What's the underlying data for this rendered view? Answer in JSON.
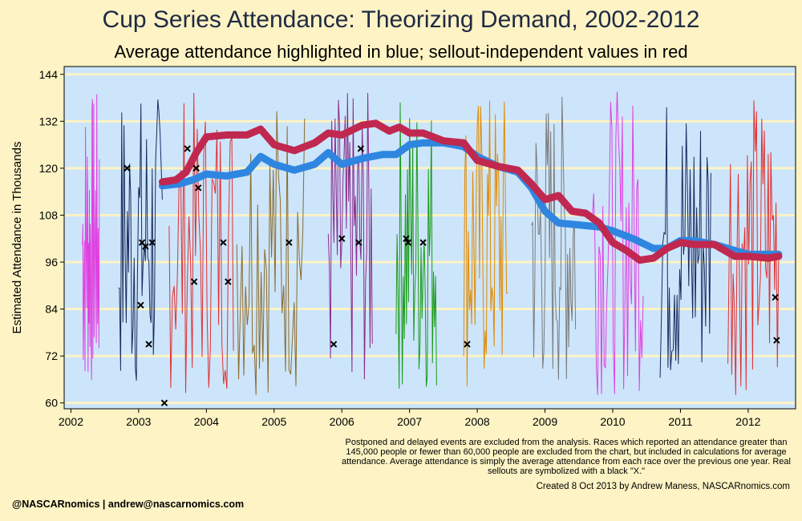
{
  "chart_data": {
    "type": "line",
    "title": "Cup Series Attendance: Theorizing Demand, 2002-2012",
    "subtitle": "Average attendance highlighted in blue; sellout-independent values in red",
    "ylabel": "Estimated Attendance in Thousands",
    "xlabel": "",
    "xlim": [
      2001.9,
      2012.7
    ],
    "ylim": [
      58.5,
      146
    ],
    "yticks": [
      60,
      72,
      84,
      96,
      108,
      120,
      132,
      144
    ],
    "xticks": [
      2002,
      2003,
      2004,
      2005,
      2006,
      2007,
      2008,
      2009,
      2010,
      2011,
      2012
    ],
    "grid": "horizontal",
    "colors": {
      "background": "#fdf3c4",
      "plot_background": "#cce5fb",
      "grid": "#fdf3c4",
      "average": "#2f86e0",
      "independent": "#c0284f"
    },
    "season_colors": [
      "#e040e0",
      "#1a2a5e",
      "#e03030",
      "#8b6a2a",
      "#8a2a8a",
      "#1a9a1a",
      "#e08a00",
      "#7a7a7a",
      "#e040e0",
      "#1a2a5e",
      "#e03030"
    ],
    "season_ranges": [
      [
        2002.17,
        2002.42
      ],
      [
        2002.7,
        2003.35
      ],
      [
        2003.45,
        2004.4
      ],
      [
        2004.45,
        2005.45
      ],
      [
        2005.8,
        2006.45
      ],
      [
        2006.8,
        2007.4
      ],
      [
        2007.8,
        2008.45
      ],
      [
        2008.8,
        2009.45
      ],
      [
        2009.7,
        2010.45
      ],
      [
        2010.7,
        2011.45
      ],
      [
        2011.7,
        2012.45
      ]
    ],
    "series": [
      {
        "name": "Average attendance",
        "x": [
          2003.35,
          2003.6,
          2003.8,
          2004.0,
          2004.3,
          2004.6,
          2004.8,
          2005.0,
          2005.3,
          2005.6,
          2005.8,
          2006.0,
          2006.3,
          2006.6,
          2006.8,
          2007.0,
          2007.2,
          2007.5,
          2007.8,
          2008.0,
          2008.3,
          2008.6,
          2008.8,
          2009.0,
          2009.2,
          2009.5,
          2009.8,
          2010.0,
          2010.3,
          2010.6,
          2010.8,
          2011.0,
          2011.2,
          2011.5,
          2011.8,
          2012.0,
          2012.3,
          2012.45
        ],
        "values": [
          115.5,
          116,
          117,
          118.5,
          118,
          119,
          123,
          121,
          119.5,
          121,
          124,
          121,
          122.5,
          123.5,
          123.5,
          126,
          126.5,
          126.5,
          125.5,
          123,
          120.5,
          119,
          115,
          109,
          106,
          105.5,
          105,
          104,
          102,
          99.5,
          99.5,
          101.5,
          101.5,
          100.5,
          99,
          98,
          98,
          98
        ]
      },
      {
        "name": "Sellout-independent values",
        "x": [
          2003.35,
          2003.55,
          2003.7,
          2003.85,
          2004.0,
          2004.3,
          2004.6,
          2004.8,
          2005.0,
          2005.3,
          2005.6,
          2005.8,
          2006.0,
          2006.3,
          2006.5,
          2006.7,
          2006.85,
          2007.0,
          2007.2,
          2007.5,
          2007.8,
          2008.0,
          2008.3,
          2008.6,
          2008.8,
          2009.0,
          2009.2,
          2009.4,
          2009.6,
          2009.8,
          2010.0,
          2010.2,
          2010.4,
          2010.6,
          2010.8,
          2011.0,
          2011.2,
          2011.5,
          2011.8,
          2012.0,
          2012.3,
          2012.45
        ],
        "values": [
          116.5,
          117,
          119,
          124,
          128,
          128.5,
          128.5,
          130,
          126,
          124.5,
          126.5,
          129,
          128.5,
          131,
          131.5,
          129.5,
          130.5,
          129,
          129,
          127,
          126.5,
          122,
          120.5,
          119.5,
          116,
          112,
          113,
          109,
          108.5,
          106,
          101,
          99,
          96.5,
          97,
          99.5,
          101,
          100.5,
          100.5,
          97.5,
          97.5,
          97,
          97.5
        ]
      }
    ],
    "sellouts": {
      "x": [
        2002.83,
        2003.03,
        2003.05,
        2003.1,
        2003.15,
        2003.2,
        2003.38,
        2003.72,
        2003.82,
        2003.85,
        2003.88,
        2004.25,
        2004.32,
        2005.22,
        2005.88,
        2006.0,
        2006.25,
        2006.28,
        2006.95,
        2006.98,
        2007.2,
        2007.85,
        2012.4,
        2012.42
      ],
      "values": [
        120,
        85,
        101,
        100,
        75,
        101,
        60,
        125,
        91,
        120,
        115,
        101,
        91,
        101,
        75,
        102,
        101,
        125,
        102,
        101,
        101,
        75,
        87,
        76
      ]
    }
  },
  "note": "Postponed and delayed events are excluded from the analysis. Races which reported an attendance greater than 145,000 people or fewer than 60,000 people are excluded from the chart, but included in calculations for average attendance. Average attendance is simply the average attendance from each race over the previous one year. Real sellouts are symbolized with a black \"X.\"",
  "credit": "Created  8 Oct 2013 by Andrew Maness, NASCARnomics.com",
  "handle": "@NASCARnomics | andrew@nascarnomics.com"
}
